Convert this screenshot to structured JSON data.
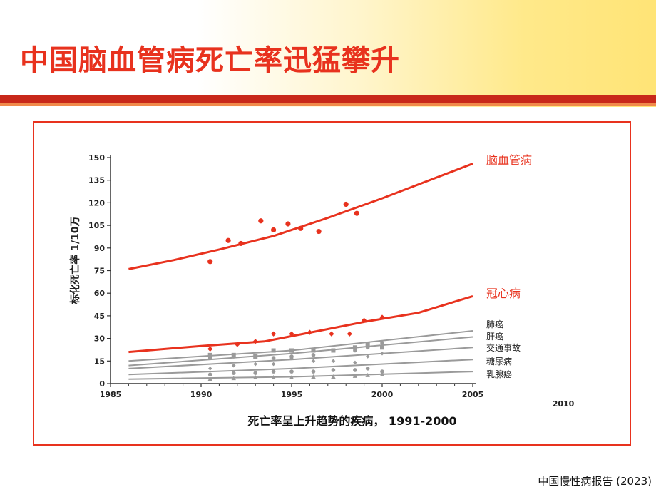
{
  "slide": {
    "title": "中国脑血管病死亡率迅猛攀升",
    "footer": "中国慢性病报告 (2023)"
  },
  "colors": {
    "accent": "#e8321e",
    "grey": "#9a9a9a"
  },
  "chart_data": {
    "type": "line",
    "ylabel": "标化死亡率    1/10万",
    "xlabel": "死亡率呈上升趋势的疾病，  1991-2000",
    "x_ticks": [
      "1985",
      "1990",
      "1995",
      "2000",
      "2005",
      "2010"
    ],
    "y_ticks": [
      "150",
      "135",
      "120",
      "105",
      "90",
      "75",
      "60",
      "45",
      "30",
      "15",
      "0"
    ],
    "xlim": [
      1985,
      2010
    ],
    "ylim": [
      0,
      150
    ],
    "series": [
      {
        "name": "脑血管病",
        "color": "#e8321e",
        "width": 3,
        "line": [
          [
            1986,
            76
          ],
          [
            1988.5,
            82
          ],
          [
            1991,
            89
          ],
          [
            1994,
            98
          ],
          [
            1997,
            110
          ],
          [
            2000,
            123
          ],
          [
            2005,
            146
          ]
        ],
        "points": [
          [
            1990.5,
            81
          ],
          [
            1991.5,
            95
          ],
          [
            1992.2,
            93
          ],
          [
            1993.3,
            108
          ],
          [
            1994,
            102
          ],
          [
            1994.8,
            106
          ],
          [
            1995.5,
            103
          ],
          [
            1996.5,
            101
          ],
          [
            1998,
            119
          ],
          [
            1998.6,
            113
          ]
        ],
        "marker": "circle"
      },
      {
        "name": "冠心病",
        "color": "#e8321e",
        "width": 3,
        "line": [
          [
            1986,
            21
          ],
          [
            1990,
            25
          ],
          [
            1993.5,
            28
          ],
          [
            1996.5,
            35
          ],
          [
            1999,
            41
          ],
          [
            2002,
            47
          ],
          [
            2005,
            58
          ]
        ],
        "points": [
          [
            1990.5,
            23
          ],
          [
            1992,
            26
          ],
          [
            1993,
            28
          ],
          [
            1994,
            33
          ],
          [
            1995,
            33
          ],
          [
            1996,
            34
          ],
          [
            1997.2,
            33
          ],
          [
            1998.2,
            33
          ],
          [
            1999,
            42
          ],
          [
            2000,
            44
          ]
        ],
        "marker": "diamond"
      },
      {
        "name": "肺癌",
        "color": "#9a9a9a",
        "width": 2,
        "line": [
          [
            1986,
            15
          ],
          [
            1995,
            22
          ],
          [
            2005,
            35
          ]
        ],
        "points": [
          [
            1990.5,
            19
          ],
          [
            1991.8,
            19
          ],
          [
            1993,
            18
          ],
          [
            1994,
            22
          ],
          [
            1995,
            22
          ],
          [
            1996.2,
            22
          ],
          [
            1997.3,
            22
          ],
          [
            1998.5,
            24
          ],
          [
            1999.2,
            26
          ],
          [
            2000,
            24
          ]
        ],
        "marker": "square"
      },
      {
        "name": "肝癌",
        "color": "#9a9a9a",
        "width": 2,
        "line": [
          [
            1986,
            12
          ],
          [
            1995,
            20
          ],
          [
            2005,
            31
          ]
        ],
        "points": [
          [
            1990.5,
            17
          ],
          [
            1991.8,
            18
          ],
          [
            1993,
            18
          ],
          [
            1994,
            17
          ],
          [
            1995,
            18
          ],
          [
            1996.2,
            19
          ],
          [
            1997.3,
            22
          ],
          [
            1998.5,
            22
          ],
          [
            1999.2,
            24
          ],
          [
            2000,
            27
          ]
        ],
        "marker": "circle"
      },
      {
        "name": "交通事故",
        "color": "#9a9a9a",
        "width": 2,
        "line": [
          [
            1986,
            10
          ],
          [
            1995,
            16
          ],
          [
            2005,
            24
          ]
        ],
        "points": [
          [
            1990.5,
            10
          ],
          [
            1991.8,
            12
          ],
          [
            1993,
            13
          ],
          [
            1994,
            13
          ],
          [
            1995,
            17
          ],
          [
            1996.2,
            15
          ],
          [
            1997.3,
            15
          ],
          [
            1998.5,
            14
          ],
          [
            1999.2,
            18
          ],
          [
            2000,
            20
          ]
        ],
        "marker": "diamond"
      },
      {
        "name": "糖尿病",
        "color": "#9a9a9a",
        "width": 2,
        "line": [
          [
            1986,
            6
          ],
          [
            1995,
            10
          ],
          [
            2005,
            16
          ]
        ],
        "points": [
          [
            1990.5,
            6
          ],
          [
            1991.8,
            7
          ],
          [
            1993,
            7
          ],
          [
            1994,
            8
          ],
          [
            1995,
            8
          ],
          [
            1996.2,
            8
          ],
          [
            1997.3,
            9
          ],
          [
            1998.5,
            9
          ],
          [
            1999.2,
            10
          ],
          [
            2000,
            8
          ]
        ],
        "marker": "circle"
      },
      {
        "name": "乳腺癌",
        "color": "#9a9a9a",
        "width": 2,
        "line": [
          [
            1986,
            3
          ],
          [
            1995,
            4.5
          ],
          [
            2005,
            8
          ]
        ],
        "points": [
          [
            1990.5,
            3
          ],
          [
            1991.8,
            3.5
          ],
          [
            1993,
            4
          ],
          [
            1994,
            4
          ],
          [
            1995,
            4
          ],
          [
            1996.2,
            4.5
          ],
          [
            1997.3,
            4.5
          ],
          [
            1998.5,
            5
          ],
          [
            1999.2,
            5.5
          ],
          [
            2000,
            6
          ]
        ],
        "marker": "triangle"
      }
    ],
    "grid": false
  }
}
